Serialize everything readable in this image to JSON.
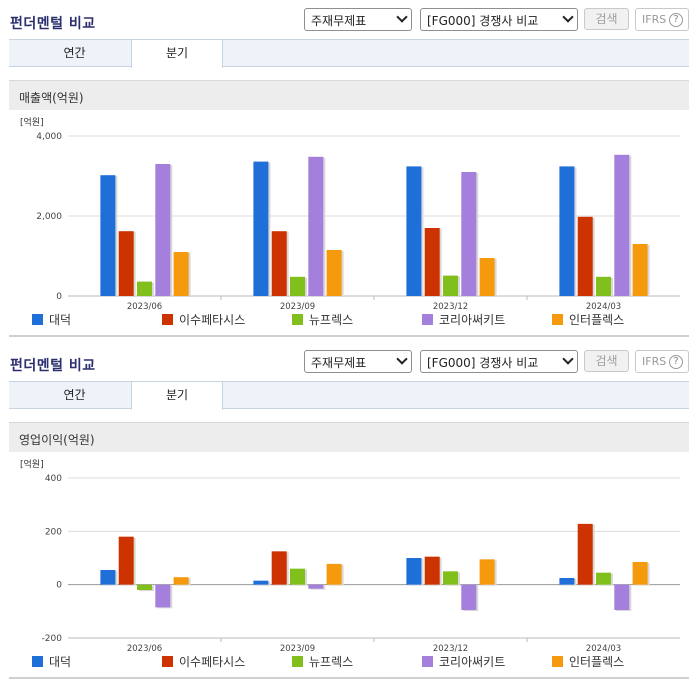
{
  "panels": [
    {
      "title": "펀더멘털 비교",
      "select_statement": "주재무제표",
      "select_group": "[FG000] 경쟁사 비교",
      "search_label": "검색",
      "ifrs_label": "IFRS",
      "help_glyph": "?",
      "tabs": [
        {
          "label": "연간",
          "active": false
        },
        {
          "label": "분기",
          "active": true
        }
      ],
      "section_title": "매출액(억원)"
    },
    {
      "title": "펀더멘털 비교",
      "select_statement": "주재무제표",
      "select_group": "[FG000] 경쟁사 비교",
      "search_label": "검색",
      "ifrs_label": "IFRS",
      "help_glyph": "?",
      "tabs": [
        {
          "label": "연간",
          "active": false
        },
        {
          "label": "분기",
          "active": true
        }
      ],
      "section_title": "영업이익(억원)"
    }
  ],
  "chart_data": [
    {
      "type": "bar",
      "unit_label": "[억원]",
      "categories": [
        "2023/06",
        "2023/09",
        "2023/12",
        "2024/03"
      ],
      "ylim": [
        0,
        4000
      ],
      "yticks": [
        0,
        2000,
        4000
      ],
      "ytick_labels": [
        "0",
        "2,000",
        "4,000"
      ],
      "grid": true,
      "legend_position": "bottom",
      "series": [
        {
          "name": "대덕",
          "color": "#1f6fd8",
          "values": [
            3020,
            3360,
            3240,
            3240
          ]
        },
        {
          "name": "이수페타시스",
          "color": "#cc3300",
          "values": [
            1620,
            1620,
            1700,
            1980
          ]
        },
        {
          "name": "뉴프렉스",
          "color": "#80bf1c",
          "values": [
            360,
            480,
            510,
            480
          ]
        },
        {
          "name": "코리아써키트",
          "color": "#a57fdc",
          "values": [
            3300,
            3480,
            3100,
            3530
          ]
        },
        {
          "name": "인터플렉스",
          "color": "#f59a0c",
          "values": [
            1100,
            1150,
            950,
            1300
          ]
        }
      ]
    },
    {
      "type": "bar",
      "unit_label": "[억원]",
      "categories": [
        "2023/06",
        "2023/09",
        "2023/12",
        "2024/03"
      ],
      "ylim": [
        -200,
        400
      ],
      "yticks": [
        -200,
        0,
        200,
        400
      ],
      "ytick_labels": [
        "-200",
        "0",
        "200",
        "400"
      ],
      "grid": true,
      "legend_position": "bottom",
      "series": [
        {
          "name": "대덕",
          "color": "#1f6fd8",
          "values": [
            55,
            15,
            100,
            25
          ]
        },
        {
          "name": "이수페타시스",
          "color": "#cc3300",
          "values": [
            180,
            125,
            105,
            228
          ]
        },
        {
          "name": "뉴프렉스",
          "color": "#80bf1c",
          "values": [
            -20,
            60,
            50,
            45
          ]
        },
        {
          "name": "코리아써키트",
          "color": "#a57fdc",
          "values": [
            -85,
            -15,
            -95,
            -95
          ]
        },
        {
          "name": "인터플렉스",
          "color": "#f59a0c",
          "values": [
            28,
            78,
            95,
            85
          ]
        }
      ]
    }
  ]
}
